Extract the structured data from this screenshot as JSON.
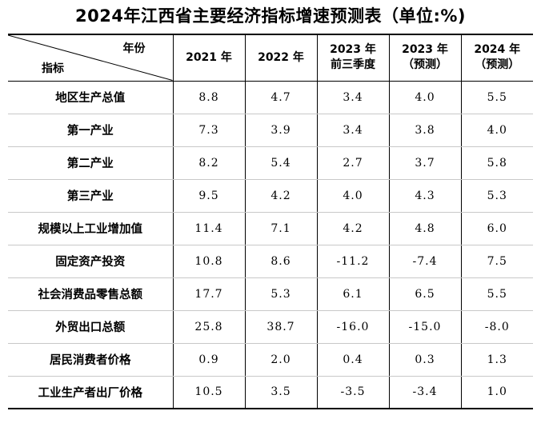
{
  "title": "2024年江西省主要经济指标增速预测表（单位:%)",
  "header": {
    "corner_top": "年份",
    "corner_bottom": "指标",
    "columns": [
      {
        "line1": "2021 年",
        "line2": ""
      },
      {
        "line1": "2022 年",
        "line2": ""
      },
      {
        "line1": "2023 年",
        "line2": "前三季度"
      },
      {
        "line1": "2023 年",
        "line2": "（预测）"
      },
      {
        "line1": "2024 年",
        "line2": "（预测）"
      }
    ]
  },
  "rows": [
    {
      "label": "地区生产总值",
      "values": [
        "8.8",
        "4.7",
        "3.4",
        "4.0",
        "5.5"
      ]
    },
    {
      "label": "第一产业",
      "values": [
        "7.3",
        "3.9",
        "3.4",
        "3.8",
        "4.0"
      ]
    },
    {
      "label": "第二产业",
      "values": [
        "8.2",
        "5.4",
        "2.7",
        "3.7",
        "5.8"
      ]
    },
    {
      "label": "第三产业",
      "values": [
        "9.5",
        "4.2",
        "4.0",
        "4.3",
        "5.3"
      ]
    },
    {
      "label": "规模以上工业增加值",
      "values": [
        "11.4",
        "7.1",
        "4.2",
        "4.8",
        "6.0"
      ]
    },
    {
      "label": "固定资产投资",
      "values": [
        "10.8",
        "8.6",
        "-11.2",
        "-7.4",
        "7.5"
      ]
    },
    {
      "label": "社会消费品零售总额",
      "values": [
        "17.7",
        "5.3",
        "6.1",
        "6.5",
        "5.5"
      ]
    },
    {
      "label": "外贸出口总额",
      "values": [
        "25.8",
        "38.7",
        "-16.0",
        "-15.0",
        "-8.0"
      ]
    },
    {
      "label": "居民消费者价格",
      "values": [
        "0.9",
        "2.0",
        "0.4",
        "0.3",
        "1.3"
      ]
    },
    {
      "label": "工业生产者出厂价格",
      "values": [
        "10.5",
        "3.5",
        "-3.5",
        "-3.4",
        "1.0"
      ]
    }
  ]
}
